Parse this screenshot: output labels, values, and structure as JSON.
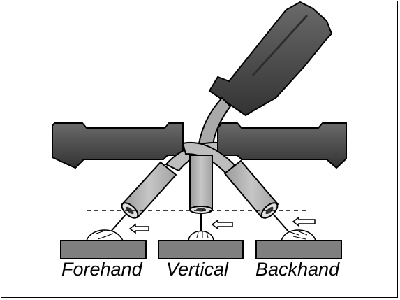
{
  "labels": {
    "forehand": "Forehand",
    "vertical": "Vertical",
    "backhand": "Backhand"
  },
  "colors": {
    "handle_dark": "#5a5a5a",
    "handle_shade": "#3a3a3a",
    "tube_light": "#b5b5b5",
    "plate_fill": "#7f7f7f",
    "outline": "#000000"
  },
  "icons": {
    "travel_arrow": "arrow-left-outline",
    "reference_line": "dashed-line"
  }
}
